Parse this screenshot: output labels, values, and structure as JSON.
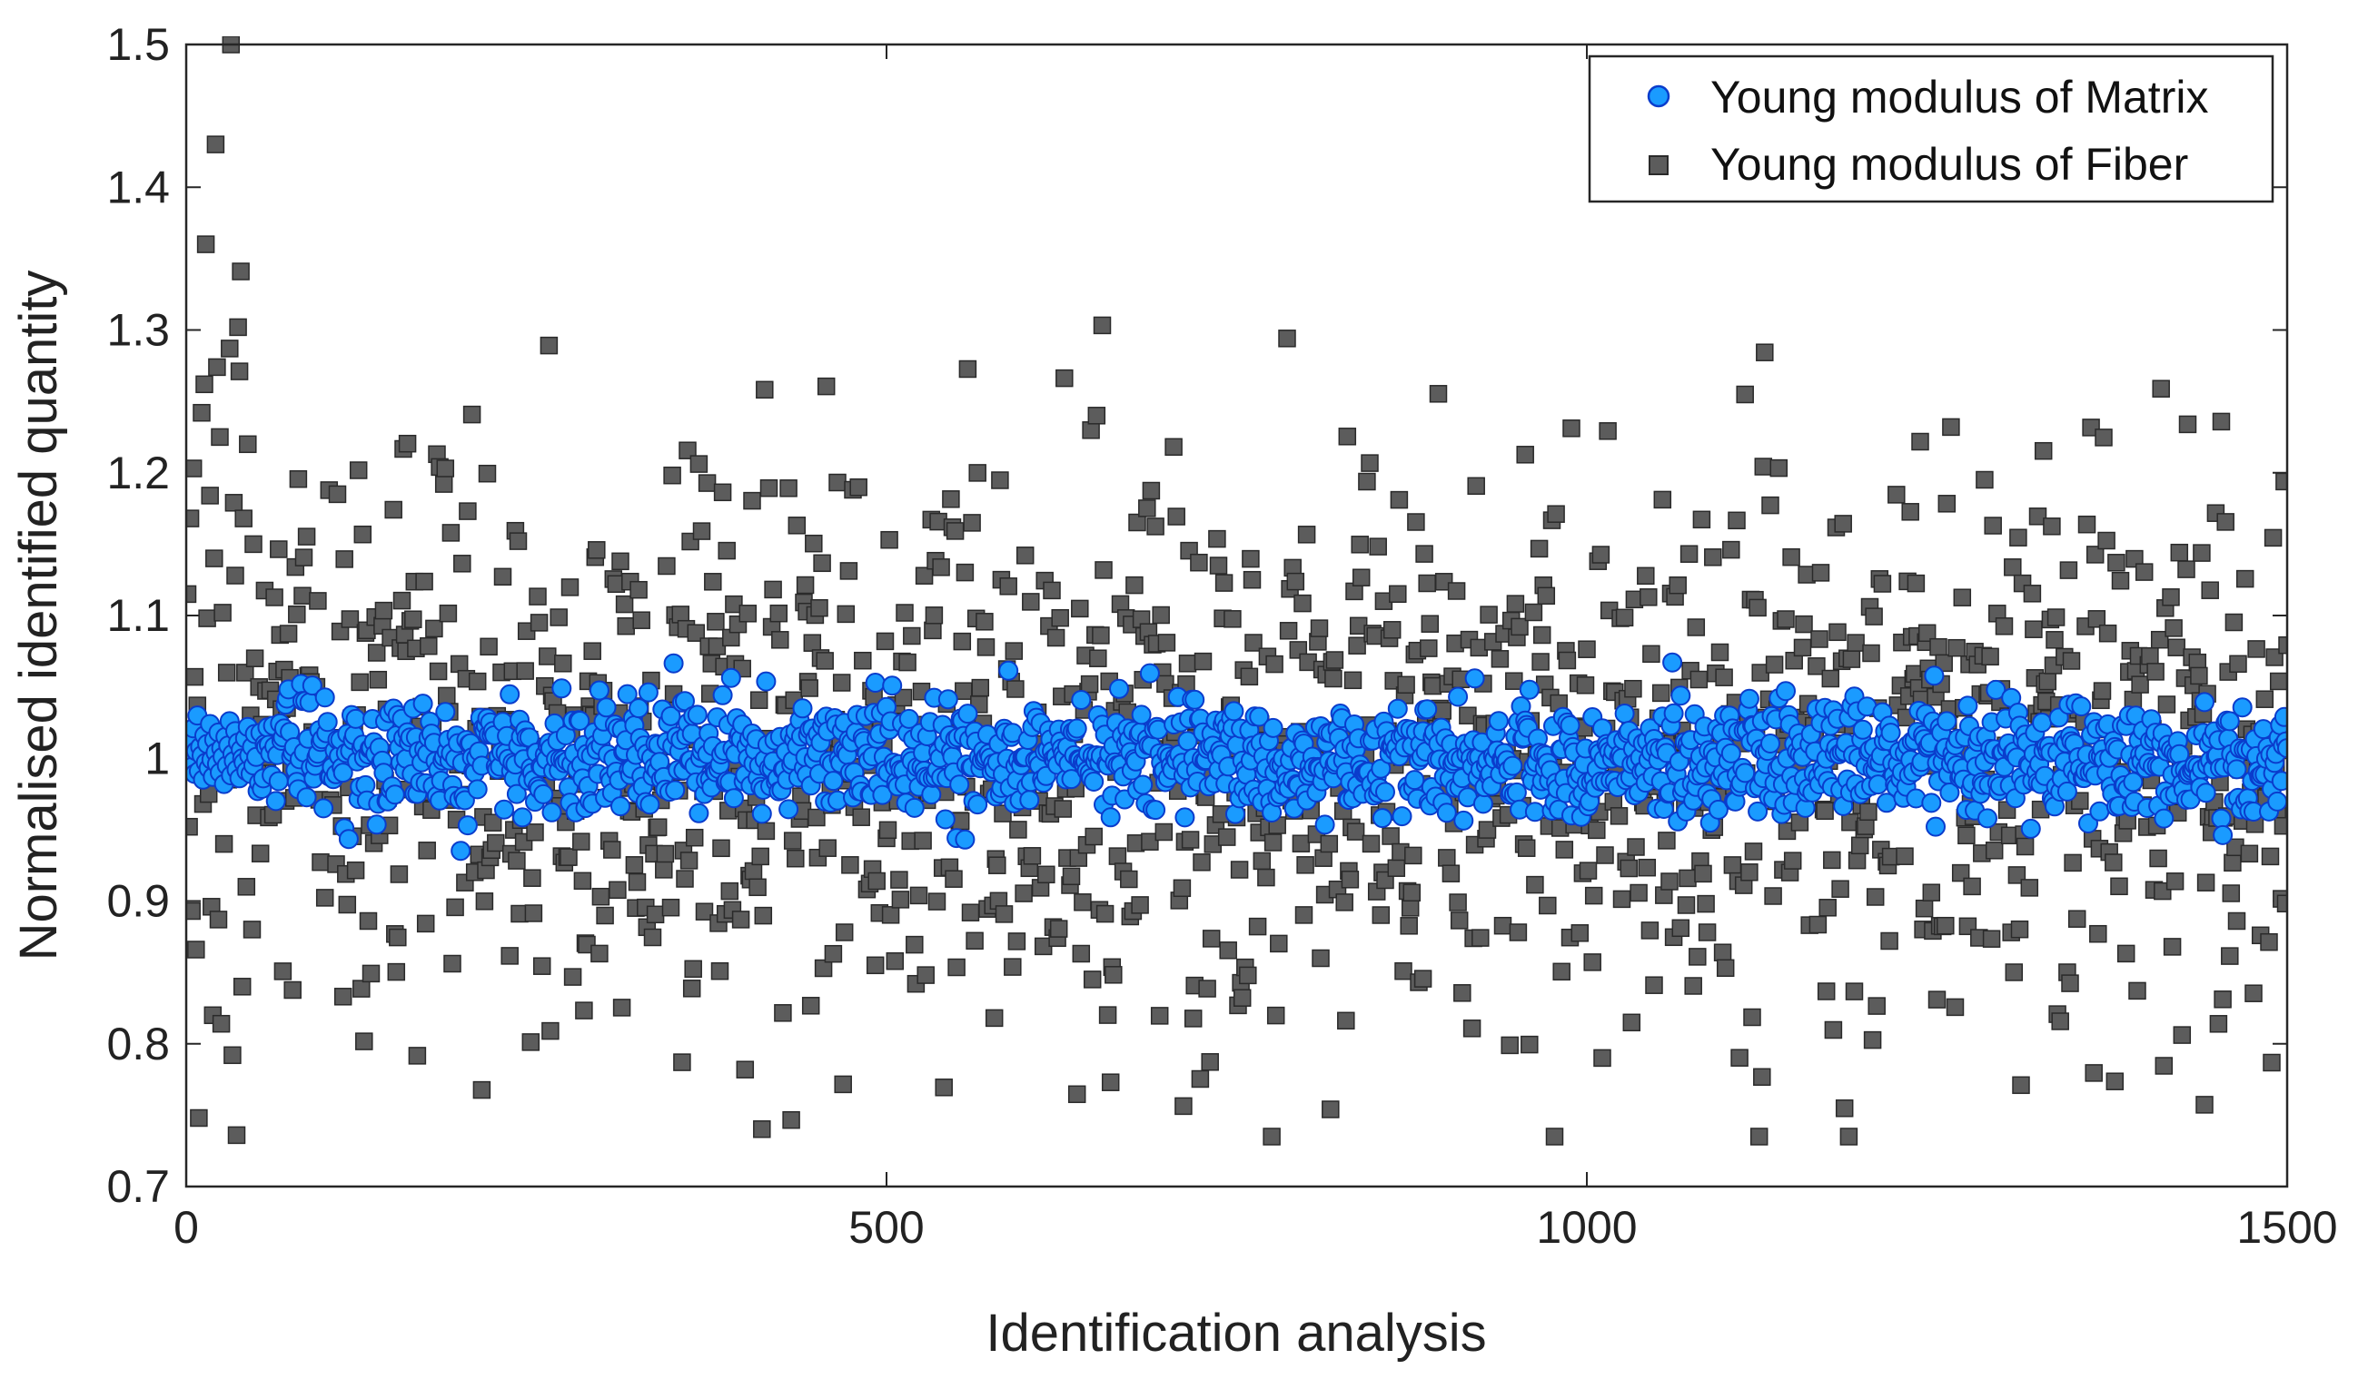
{
  "chart_data": {
    "type": "scatter",
    "xlabel": "Identification analysis",
    "ylabel": "Normalised identified quantity",
    "xlim": [
      0,
      1500
    ],
    "ylim": [
      0.7,
      1.5
    ],
    "x_ticks": [
      0,
      500,
      1000,
      1500
    ],
    "y_ticks": [
      0.7,
      0.8,
      0.9,
      1,
      1.1,
      1.2,
      1.3,
      1.4,
      1.5
    ],
    "x_tick_labels": [
      "0",
      "500",
      "1000",
      "1500"
    ],
    "y_tick_labels": [
      "0.7",
      "0.8",
      "0.9",
      "1",
      "1.1",
      "1.2",
      "1.3",
      "1.4",
      "1.5"
    ],
    "legend_position": "top-right",
    "series": [
      {
        "name": "Young modulus of Matrix",
        "marker": "circle",
        "fill_color": "#1a9bff",
        "edge_color": "#0a3ccc",
        "num_points": 1500,
        "center": 1.0,
        "spread_approx": 0.02,
        "x_start": 1,
        "x_step": 1,
        "y_sample": [
          1.0,
          0.998,
          1.012,
          0.994,
          1.021,
          0.989,
          1.005,
          1.03,
          0.991,
          1.008,
          1.002,
          0.985,
          1.016,
          0.997,
          1.01,
          0.993,
          1.024,
          0.999,
          0.987,
          1.013,
          1.004,
          0.996,
          1.018,
          0.99,
          1.007,
          1.001,
          0.982,
          1.015,
          0.995,
          1.009,
          1.026,
          0.988,
          1.003,
          0.998,
          1.019,
          0.992,
          1.011,
          0.986,
          1.006,
          1.0,
          0.997,
          1.014,
          0.991,
          1.022,
          1.002,
          0.989,
          1.008,
          0.995,
          1.017,
          1.001
        ]
      },
      {
        "name": "Young modulus of Fiber",
        "marker": "square",
        "fill_color": "#5c5c5c",
        "edge_color": "#2a2a2a",
        "num_points": 1500,
        "center": 1.0,
        "spread_approx": 0.1,
        "x_start": 1,
        "x_step": 1,
        "y_min_observed": 0.735,
        "y_max_observed": 1.5,
        "y_sample": [
          1.115,
          0.952,
          1.168,
          0.893,
          1.203,
          1.057,
          0.866,
          1.037,
          0.748,
          1.012,
          1.242,
          0.968,
          1.262,
          1.36,
          1.098,
          0.975,
          1.184,
          0.896,
          0.82,
          1.14,
          1.43,
          1.274,
          0.887,
          1.225,
          0.814,
          1.102,
          0.94,
          1.008,
          1.06,
          0.985,
          1.287,
          1.5,
          0.792,
          1.179,
          1.128,
          0.736,
          1.302,
          1.271,
          1.341,
          0.84,
          1.168,
          1.06,
          0.91,
          1.22,
          0.998,
          1.03,
          0.88,
          1.15,
          1.07,
          0.96
        ]
      }
    ]
  }
}
